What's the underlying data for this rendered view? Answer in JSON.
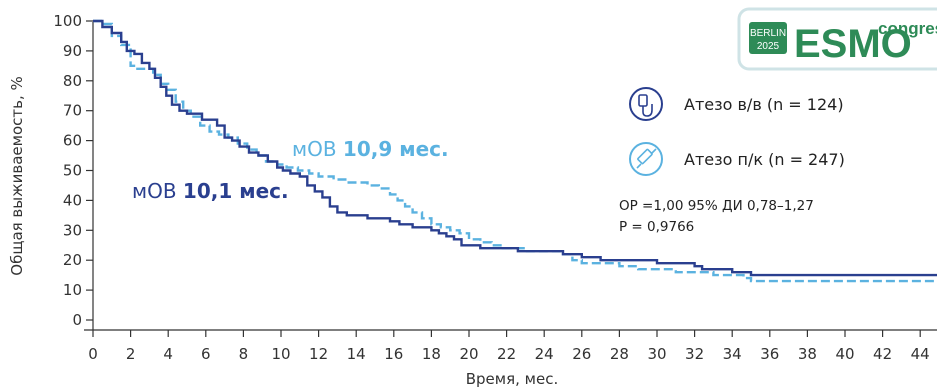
{
  "logo": {
    "city": "BERLIN",
    "year": "2025",
    "brand": "ESMO",
    "suffix": "congress",
    "colors": {
      "badge": "#2e8b57",
      "e": "#2e8b57",
      "s": "#1a1a1a",
      "m": "#8b1a4a",
      "o": "#2e8b57",
      "suffix": "#2e8b57",
      "frame": "#cfe3e6"
    }
  },
  "legend": [
    {
      "label": "Атезо в/в (n = 124)",
      "icon": "iv-drip-icon"
    },
    {
      "label": "Атезо п/к (n = 247)",
      "icon": "syringe-icon"
    }
  ],
  "stats": {
    "line1": "ОР =1,00 95% ДИ 0,78–1,27",
    "line2": "P = 0,9766"
  },
  "annotations": {
    "sc": {
      "prefix": "мОВ ",
      "value": "10,9 мес.",
      "color": "#5bb2e0"
    },
    "iv": {
      "prefix": "мОВ ",
      "value": "10,1 мес.",
      "color": "#2a3f8f"
    }
  },
  "chart_data": {
    "type": "line",
    "xlabel": "Время, мес.",
    "ylabel": "Общая выживаемость, %",
    "xlim": [
      0,
      45
    ],
    "ylim": [
      0,
      100
    ],
    "xticks": [
      0,
      2,
      4,
      6,
      8,
      10,
      12,
      14,
      16,
      18,
      20,
      22,
      24,
      26,
      28,
      30,
      32,
      34,
      36,
      38,
      40,
      42,
      44
    ],
    "yticks": [
      0,
      10,
      20,
      30,
      40,
      50,
      60,
      70,
      80,
      90,
      100
    ],
    "series": [
      {
        "name": "Атезо в/в (n = 124)",
        "style": "solid",
        "color": "#2a3f8f",
        "points": [
          [
            0,
            100
          ],
          [
            0.5,
            98
          ],
          [
            1,
            96
          ],
          [
            1.5,
            93
          ],
          [
            1.8,
            90
          ],
          [
            2.2,
            89
          ],
          [
            2.6,
            86
          ],
          [
            3,
            84
          ],
          [
            3.3,
            81
          ],
          [
            3.6,
            78
          ],
          [
            3.9,
            75
          ],
          [
            4.2,
            72
          ],
          [
            4.6,
            70
          ],
          [
            5,
            69
          ],
          [
            5.4,
            69
          ],
          [
            5.8,
            67
          ],
          [
            6.3,
            67
          ],
          [
            6.6,
            65
          ],
          [
            7,
            61
          ],
          [
            7.4,
            60
          ],
          [
            7.8,
            58
          ],
          [
            8.3,
            56
          ],
          [
            8.8,
            55
          ],
          [
            9.3,
            53
          ],
          [
            9.8,
            51
          ],
          [
            10.1,
            50
          ],
          [
            10.5,
            49
          ],
          [
            11,
            48
          ],
          [
            11.4,
            45
          ],
          [
            11.8,
            43
          ],
          [
            12.2,
            41
          ],
          [
            12.6,
            38
          ],
          [
            13,
            36
          ],
          [
            13.5,
            35
          ],
          [
            14,
            35
          ],
          [
            14.6,
            34
          ],
          [
            15.2,
            34
          ],
          [
            15.8,
            33
          ],
          [
            16.3,
            32
          ],
          [
            17,
            31
          ],
          [
            17.5,
            31
          ],
          [
            18,
            30
          ],
          [
            18.4,
            29
          ],
          [
            18.8,
            28
          ],
          [
            19.2,
            27
          ],
          [
            19.6,
            25
          ],
          [
            20,
            25
          ],
          [
            20.6,
            24
          ],
          [
            21.5,
            24
          ],
          [
            22.2,
            24
          ],
          [
            22.6,
            23
          ],
          [
            24,
            23
          ],
          [
            25,
            22
          ],
          [
            26,
            21
          ],
          [
            27,
            20
          ],
          [
            28,
            20
          ],
          [
            29,
            20
          ],
          [
            30,
            19
          ],
          [
            31,
            19
          ],
          [
            32,
            18
          ],
          [
            32.4,
            17
          ],
          [
            33,
            17
          ],
          [
            34,
            16
          ],
          [
            35,
            15
          ],
          [
            36,
            15
          ],
          [
            40,
            15
          ],
          [
            45,
            15
          ]
        ]
      },
      {
        "name": "Атезо п/к (n = 247)",
        "style": "dashed",
        "color": "#5bb2e0",
        "points": [
          [
            0,
            100
          ],
          [
            0.5,
            99
          ],
          [
            1,
            95
          ],
          [
            1.5,
            92
          ],
          [
            2,
            85
          ],
          [
            2.3,
            84
          ],
          [
            2.8,
            84
          ],
          [
            3.2,
            82
          ],
          [
            3.6,
            79
          ],
          [
            4,
            77
          ],
          [
            4.4,
            73
          ],
          [
            4.8,
            70
          ],
          [
            5.2,
            68
          ],
          [
            5.7,
            65
          ],
          [
            6.2,
            63
          ],
          [
            6.7,
            62
          ],
          [
            7.2,
            61
          ],
          [
            7.7,
            59
          ],
          [
            8.2,
            57
          ],
          [
            8.7,
            55
          ],
          [
            9.2,
            53
          ],
          [
            9.8,
            52
          ],
          [
            10.3,
            51
          ],
          [
            10.9,
            50
          ],
          [
            11.5,
            49
          ],
          [
            12,
            48
          ],
          [
            12.8,
            47
          ],
          [
            13.5,
            46
          ],
          [
            14,
            46
          ],
          [
            14.6,
            45
          ],
          [
            15.2,
            44
          ],
          [
            15.8,
            42
          ],
          [
            16.2,
            40
          ],
          [
            16.6,
            38
          ],
          [
            17,
            36
          ],
          [
            17.5,
            34
          ],
          [
            18,
            32
          ],
          [
            18.5,
            31
          ],
          [
            19,
            30
          ],
          [
            19.5,
            29
          ],
          [
            20,
            27
          ],
          [
            20.6,
            26
          ],
          [
            21.2,
            25
          ],
          [
            21.8,
            24
          ],
          [
            22.4,
            24
          ],
          [
            23,
            23
          ],
          [
            24,
            23
          ],
          [
            25,
            22
          ],
          [
            25.5,
            20
          ],
          [
            26,
            19
          ],
          [
            27,
            19
          ],
          [
            28,
            18
          ],
          [
            29,
            17
          ],
          [
            30,
            17
          ],
          [
            31,
            16
          ],
          [
            32,
            16
          ],
          [
            33,
            15
          ],
          [
            34,
            15
          ],
          [
            34.6,
            14
          ],
          [
            35,
            13
          ],
          [
            36,
            13
          ],
          [
            40,
            13
          ],
          [
            45,
            13
          ]
        ]
      }
    ]
  }
}
